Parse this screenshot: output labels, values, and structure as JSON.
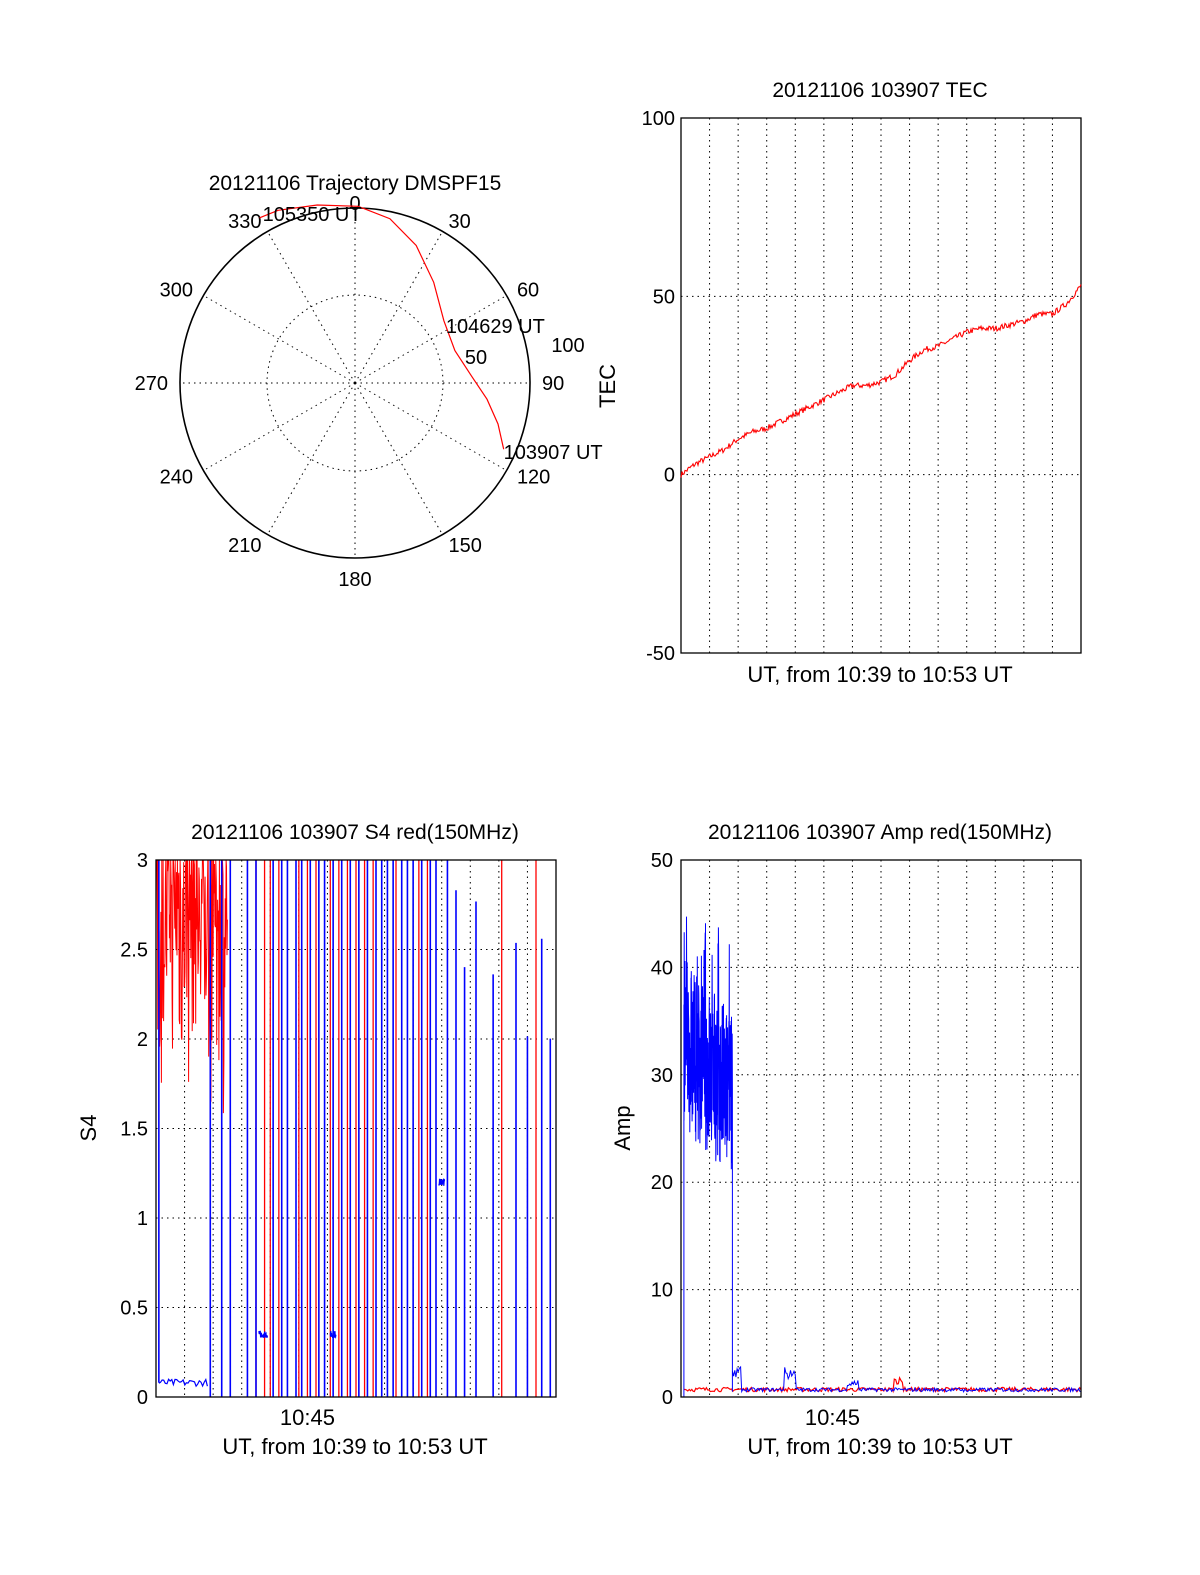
{
  "colors": {
    "red": "#ff0000",
    "blue": "#0000ff",
    "axis": "#000000"
  },
  "chart_data": [
    {
      "type": "polar-trajectory",
      "title": "20121106 Trajectory DMSPF15",
      "azimuth_ticks": [
        "0",
        "30",
        "60",
        "90",
        "120",
        "150",
        "180",
        "210",
        "240",
        "270",
        "300",
        "330"
      ],
      "radial_ticks": [
        "50",
        "100"
      ],
      "series": [
        {
          "color": "red",
          "points": [
            {
              "azimuth": 114,
              "zenith": 93
            },
            {
              "azimuth": 106,
              "zenith": 85
            },
            {
              "azimuth": 97,
              "zenith": 76
            },
            {
              "azimuth": 87,
              "zenith": 67
            },
            {
              "azimuth": 72,
              "zenith": 60
            },
            {
              "azimuth": 55,
              "zenith": 62
            },
            {
              "azimuth": 38,
              "zenith": 73
            },
            {
              "azimuth": 24,
              "zenith": 86
            },
            {
              "azimuth": 12,
              "zenith": 96
            },
            {
              "azimuth": 1,
              "zenith": 101
            },
            {
              "azimuth": 348,
              "zenith": 104
            },
            {
              "azimuth": 336,
              "zenith": 108
            },
            {
              "azimuth": 330,
              "zenith": 109
            }
          ]
        }
      ],
      "annotations": [
        {
          "text": "105350 UT",
          "azimuth": 332,
          "zenith": 110
        },
        {
          "text": "104629 UT",
          "azimuth": 55,
          "zenith": 62
        },
        {
          "text": "103907 UT",
          "azimuth": 114,
          "zenith": 93
        }
      ]
    },
    {
      "type": "line",
      "title": "20121106 103907 TEC",
      "xlabel": "UT, from 10:39 to 10:53 UT",
      "ylabel": "TEC",
      "xlim": [
        0,
        14
      ],
      "ylim": [
        -50,
        100
      ],
      "yticks": [
        "100",
        "50",
        "0",
        "-50"
      ],
      "xtick_labels": [],
      "grid": true,
      "series": [
        {
          "color": "red",
          "x": [
            0,
            0.5,
            1,
            1.5,
            2,
            2.5,
            3,
            3.5,
            4,
            4.5,
            5,
            5.5,
            6,
            6.5,
            7,
            7.5,
            8,
            8.5,
            9,
            9.5,
            10,
            10.5,
            11,
            11.5,
            12,
            12.5,
            13,
            13.5,
            14
          ],
          "y": [
            0,
            3,
            5,
            7,
            10,
            12,
            13,
            15,
            17,
            19,
            21,
            23,
            25,
            25,
            26,
            28,
            32,
            35,
            36,
            38,
            40,
            41,
            41,
            42,
            43,
            45,
            45,
            48,
            53
          ]
        }
      ]
    },
    {
      "type": "line",
      "title": "20121106 103907 S4 red(150MHz)",
      "xlabel": "UT, from 10:39 to 10:53 UT",
      "ylabel": "S4",
      "xlim": [
        0,
        14
      ],
      "ylim": [
        0,
        3
      ],
      "yticks": [
        "0",
        "0.5",
        "1",
        "1.5",
        "2",
        "2.5",
        "3"
      ],
      "xtick_labels": [
        {
          "x": 6.0,
          "label": "10:45"
        }
      ],
      "grid": true,
      "series": [
        {
          "color": "red",
          "note": "red S4 spikes: dense noise 0..2.5 UT ranging 1.5..3, then sparse full-height spikes",
          "band": {
            "x": [
              0,
              2.5
            ],
            "ylow": 1.5,
            "yhigh": 3
          },
          "spikes_x": [
            3.5,
            3.8,
            4.0,
            4.3,
            5.0,
            5.3,
            5.6,
            6.1,
            6.4,
            6.7,
            7.0,
            7.3,
            7.6,
            8.4,
            9.2,
            9.5,
            12.1,
            13.3
          ]
        },
        {
          "color": "blue",
          "low_segments": [
            {
              "x": [
                0.1,
                1.8
              ],
              "y": 0.08
            },
            {
              "x": [
                3.6,
                3.9
              ],
              "y": 0.35
            },
            {
              "x": [
                6.1,
                6.3
              ],
              "y": 0.35
            },
            {
              "x": [
                9.9,
                10.1
              ],
              "y": 1.2
            }
          ],
          "spikes_x": [
            1.9,
            2.3,
            2.6,
            3.2,
            3.5,
            4.1,
            4.4,
            4.6,
            4.9,
            5.1,
            5.4,
            5.7,
            5.9,
            6.2,
            6.5,
            6.8,
            7.1,
            7.4,
            7.7,
            7.9,
            8.1,
            8.3,
            8.6,
            8.8,
            9.0,
            9.3,
            9.6,
            9.8,
            10.2,
            10.5,
            10.8,
            11.2,
            11.8,
            12.6,
            13.0,
            13.5,
            13.8
          ]
        }
      ]
    },
    {
      "type": "line",
      "title": "20121106 103907 Amp red(150MHz)",
      "xlabel": "UT, from 10:39 to 10:53 UT",
      "ylabel": "Amp",
      "xlim": [
        0,
        14
      ],
      "ylim": [
        0,
        50
      ],
      "yticks": [
        "0",
        "10",
        "20",
        "30",
        "40",
        "50"
      ],
      "xtick_labels": [
        {
          "x": 6.0,
          "label": "10:45"
        }
      ],
      "grid": true,
      "series": [
        {
          "color": "blue",
          "note": "amplitude ~30 with heavy noise from 0.1 to 1.8 UT, then near 0.5 with small bumps",
          "band": {
            "x": [
              0.1,
              1.8
            ],
            "ylow": 20,
            "yhigh": 40,
            "peak": 45
          },
          "baseline": 0.5,
          "bumps": [
            {
              "x": 1.9,
              "y": 3
            },
            {
              "x": 3.8,
              "y": 2.8
            },
            {
              "x": 6.0,
              "y": 1.6
            },
            {
              "x": 10.0,
              "y": 0.8
            }
          ]
        },
        {
          "color": "red",
          "baseline": 0.5,
          "bumps": [
            {
              "x": 7.6,
              "y": 1.8
            }
          ]
        }
      ]
    }
  ]
}
